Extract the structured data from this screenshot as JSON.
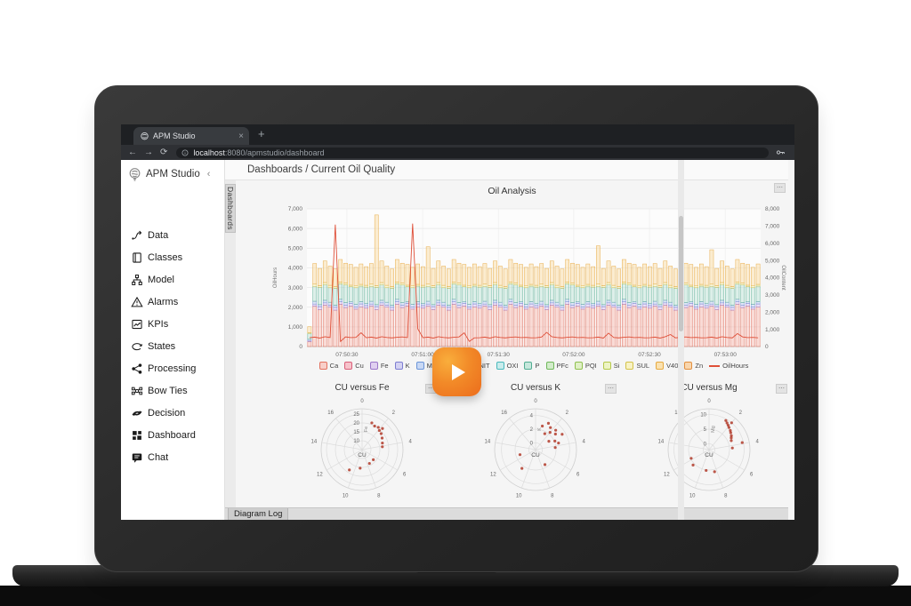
{
  "ui": {
    "menu_dots": "⋯",
    "close": "×",
    "new_tab": "+",
    "back": "←",
    "forward": "→",
    "reload": "⟳",
    "collapse": "‹"
  },
  "browser": {
    "tab": {
      "title": "APM Studio"
    },
    "address": {
      "host": "localhost",
      "rest": ":8080/apmstudio/dashboard"
    }
  },
  "sidebar": {
    "brand": "APM Studio",
    "items": [
      {
        "label": "Data"
      },
      {
        "label": "Classes"
      },
      {
        "label": "Model"
      },
      {
        "label": "Alarms"
      },
      {
        "label": "KPIs"
      },
      {
        "label": "States"
      },
      {
        "label": "Processing"
      },
      {
        "label": "Bow Ties"
      },
      {
        "label": "Decision"
      },
      {
        "label": "Dashboard"
      },
      {
        "label": "Chat"
      }
    ]
  },
  "breadcrumb": "Dashboards / Current Oil Quality",
  "panel_tab": "Dashboards",
  "bottom_tab": "Diagram Log",
  "chart_data": [
    {
      "type": "bar",
      "title": "Oil Analysis",
      "ylabel_left": "OilHours",
      "ylabel_right": "OilContent",
      "y_left": {
        "min": 0,
        "max": 7000,
        "step": 1000
      },
      "y_right": {
        "min": 0,
        "max": 8000,
        "step": 1000
      },
      "x_ticks": [
        "07:50:30",
        "07:51:00",
        "07:51:30",
        "07:52:00",
        "07:52:30",
        "07:53:00"
      ],
      "x_tick_pos": [
        0.088,
        0.255,
        0.422,
        0.588,
        0.755,
        0.922
      ],
      "grid": true,
      "legend_position": "bottom",
      "series": [
        {
          "name": "Ca",
          "fill": "#f5c0b7",
          "stroke": "#dd6a58",
          "values": [
            250,
            2050,
            1880,
            2100,
            2000,
            1850,
            2150,
            1980,
            2060,
            1900,
            2020,
            1950,
            2050,
            1880,
            2100,
            2000,
            1850,
            2150,
            1980,
            2060,
            1900,
            2020,
            1950,
            2050,
            1880,
            2100,
            2000,
            1850,
            2150,
            1980,
            2060,
            1900,
            2020,
            1950,
            2050,
            1880,
            2100,
            2000,
            1850,
            2150,
            1980,
            2060,
            1900,
            2020,
            1950,
            2050,
            1880,
            2100,
            2000,
            1850,
            2150,
            1980,
            2060,
            1900,
            2020,
            1950,
            2050,
            1880,
            2100,
            2000,
            1850,
            2150,
            1980,
            2060,
            1900,
            2020,
            1950,
            2050,
            1880,
            2100,
            2000,
            1850,
            2150,
            1980,
            2060,
            1900,
            2020,
            1950,
            2050,
            1880,
            2100,
            2000,
            1850,
            2150,
            1980,
            2060,
            1900,
            2020
          ]
        },
        {
          "name": "Fe",
          "fill": "#ddcbf0",
          "stroke": "#9a76c9",
          "values": [
            60,
            110,
            150,
            120,
            100,
            140,
            125,
            115,
            135,
            105,
            145,
            130,
            110,
            150,
            120,
            100,
            140,
            125,
            115,
            135,
            105,
            145,
            130,
            110,
            150,
            120,
            100,
            140,
            125,
            115,
            135,
            105,
            145,
            130,
            110,
            150,
            120,
            100,
            140,
            125,
            115,
            135,
            105,
            145,
            130,
            110,
            150,
            120,
            100,
            140,
            125,
            115,
            135,
            105,
            145,
            130,
            110,
            150,
            120,
            100,
            140,
            125,
            115,
            135,
            105,
            145,
            130,
            110,
            150,
            120,
            100,
            140,
            125,
            115,
            135,
            105,
            145,
            130,
            110,
            150,
            120,
            100,
            140,
            125,
            115,
            135,
            105,
            145
          ]
        },
        {
          "name": "Mg",
          "fill": "#c6d4f1",
          "stroke": "#6b8fd4",
          "values": [
            60,
            140,
            100,
            130,
            150,
            110,
            125,
            135,
            95,
            145,
            115,
            120,
            140,
            100,
            130,
            150,
            110,
            125,
            135,
            95,
            145,
            115,
            120,
            140,
            100,
            130,
            150,
            110,
            125,
            135,
            95,
            145,
            115,
            120,
            140,
            100,
            130,
            150,
            110,
            125,
            135,
            95,
            145,
            115,
            120,
            140,
            100,
            130,
            150,
            110,
            125,
            135,
            95,
            145,
            115,
            120,
            140,
            100,
            130,
            150,
            110,
            125,
            135,
            95,
            145,
            115,
            120,
            140,
            100,
            130,
            150,
            110,
            125,
            135,
            95,
            145,
            115,
            120,
            140,
            100,
            130,
            150,
            110,
            125,
            135,
            95,
            145,
            115
          ]
        },
        {
          "name": "P",
          "fill": "#c2e4d8",
          "stroke": "#55ab90",
          "values": [
            300,
            760,
            880,
            800,
            740,
            860,
            780,
            900,
            750,
            840,
            790,
            820,
            760,
            880,
            800,
            740,
            860,
            780,
            900,
            750,
            840,
            790,
            820,
            760,
            880,
            800,
            740,
            860,
            780,
            900,
            750,
            840,
            790,
            820,
            760,
            880,
            800,
            740,
            860,
            780,
            900,
            750,
            840,
            790,
            820,
            760,
            880,
            800,
            740,
            860,
            780,
            900,
            750,
            840,
            790,
            820,
            760,
            880,
            800,
            740,
            860,
            780,
            900,
            750,
            840,
            790,
            820,
            760,
            880,
            800,
            740,
            860,
            780,
            900,
            750,
            840,
            790,
            820,
            760,
            880,
            800,
            740,
            860,
            780,
            900,
            750,
            840,
            790
          ]
        },
        {
          "name": "SUL",
          "fill": "#f7f1c3",
          "stroke": "#d2c148",
          "values": [
            40,
            110,
            80,
            100,
            120,
            85,
            95,
            105,
            75,
            115,
            88,
            90,
            110,
            80,
            100,
            120,
            85,
            95,
            105,
            75,
            115,
            88,
            90,
            110,
            80,
            100,
            120,
            85,
            95,
            105,
            75,
            115,
            88,
            90,
            110,
            80,
            100,
            120,
            85,
            95,
            105,
            75,
            115,
            88,
            90,
            110,
            80,
            100,
            120,
            85,
            95,
            105,
            75,
            115,
            88,
            90,
            110,
            80,
            100,
            120,
            85,
            95,
            105,
            75,
            115,
            88,
            90,
            110,
            80,
            100,
            120,
            85,
            95,
            105,
            75,
            115,
            88,
            90,
            110,
            80,
            100,
            120,
            85,
            95,
            105,
            75,
            115,
            88
          ]
        },
        {
          "name": "V40",
          "fill": "#fadfab",
          "stroke": "#e5a63c",
          "values": [
            300,
            1050,
            880,
            1100,
            980,
            900,
            1150,
            1000,
            1060,
            920,
            1040,
            950,
            1050,
            3600,
            1100,
            980,
            900,
            1150,
            1000,
            1060,
            920,
            1040,
            950,
            1900,
            880,
            1100,
            980,
            900,
            1150,
            1000,
            1060,
            920,
            1040,
            950,
            1050,
            880,
            1100,
            980,
            900,
            1150,
            1000,
            1060,
            920,
            1040,
            950,
            1050,
            880,
            1100,
            980,
            900,
            1150,
            1000,
            1060,
            920,
            1040,
            950,
            1950,
            880,
            1100,
            980,
            900,
            1150,
            1000,
            1060,
            920,
            1040,
            950,
            1050,
            880,
            1100,
            980,
            900,
            1150,
            1000,
            1060,
            920,
            1040,
            950,
            1750,
            880,
            1100,
            980,
            900,
            1150,
            1000,
            1060,
            920,
            1040
          ]
        }
      ],
      "line_series": {
        "name": "OilHours",
        "color": "#df4f38",
        "values": [
          450,
          480,
          430,
          500,
          460,
          6200,
          260,
          490,
          455,
          465,
          700,
          450,
          480,
          430,
          500,
          460,
          440,
          470,
          490,
          455,
          6250,
          900,
          450,
          480,
          430,
          500,
          460,
          440,
          470,
          490,
          700,
          260,
          445,
          450,
          480,
          430,
          500,
          460,
          440,
          470,
          490,
          455,
          465,
          445,
          450,
          480,
          720,
          500,
          460,
          440,
          470,
          490,
          455,
          465,
          445,
          450,
          480,
          430,
          680,
          460,
          440,
          470,
          490,
          455,
          465,
          445,
          450,
          480,
          430,
          500,
          610,
          440,
          470,
          490,
          455,
          465,
          445,
          450,
          480,
          430,
          500,
          460,
          440,
          660,
          490,
          455,
          465,
          445
        ]
      },
      "legend": [
        {
          "label": "Ca",
          "fill": "#f8cfc9",
          "stroke": "#e2715f"
        },
        {
          "label": "Cu",
          "fill": "#f6c3cb",
          "stroke": "#d95f79"
        },
        {
          "label": "Fe",
          "fill": "#e0d0f0",
          "stroke": "#9a76c9"
        },
        {
          "label": "K",
          "fill": "#d4d2f2",
          "stroke": "#7d7ed1"
        },
        {
          "label": "Mg",
          "fill": "#c8d8f4",
          "stroke": "#6b95d8"
        },
        {
          "label": "Mo",
          "fill": "#d0e2f6",
          "stroke": "#5fa6d9"
        },
        {
          "label": "NIT",
          "fill": "#d6ecf8",
          "stroke": "#58b3dd"
        },
        {
          "label": "OXI",
          "fill": "#c9ecec",
          "stroke": "#49b8bc"
        },
        {
          "label": "P",
          "fill": "#c6e7dc",
          "stroke": "#52ad92"
        },
        {
          "label": "PFc",
          "fill": "#d2ecca",
          "stroke": "#6fb75a"
        },
        {
          "label": "PQI",
          "fill": "#e0f0c6",
          "stroke": "#8fc04f"
        },
        {
          "label": "Si",
          "fill": "#edf4c4",
          "stroke": "#b5c84a"
        },
        {
          "label": "SUL",
          "fill": "#f8f2c4",
          "stroke": "#d3c24a"
        },
        {
          "label": "V40",
          "fill": "#fae1b0",
          "stroke": "#e6a93f"
        },
        {
          "label": "Zn",
          "fill": "#f9d6ad",
          "stroke": "#e28f3e"
        },
        {
          "label": "OilHours",
          "type": "line",
          "color": "#df4f38"
        }
      ]
    },
    {
      "type": "scatter-polar",
      "title": "CU versus Fe",
      "center_label": "CU",
      "radial_title": "Fe",
      "angular_ticks": [
        0,
        2,
        4,
        6,
        8,
        10,
        12,
        14,
        16
      ],
      "angular_max": 18,
      "radial_ticks": [
        10,
        15,
        20,
        25
      ],
      "radial_min": 5,
      "radial_max": 28,
      "point_color": "#b23b2a",
      "points": [
        [
          1.0,
          21
        ],
        [
          1.4,
          20
        ],
        [
          1.8,
          20.5
        ],
        [
          2.1,
          19.5
        ],
        [
          2.5,
          19
        ],
        [
          3.0,
          18
        ],
        [
          3.6,
          17
        ],
        [
          4.1,
          16.5
        ],
        [
          6.6,
          13.5
        ],
        [
          7.6,
          13.8
        ],
        [
          9.3,
          15.5
        ],
        [
          10.6,
          18.5
        ],
        [
          2.2,
          21.5
        ]
      ]
    },
    {
      "type": "scatter-polar",
      "title": "CU versus K",
      "center_label": "CU",
      "radial_title": "K",
      "angular_ticks": [
        0,
        2,
        4,
        6,
        8,
        10,
        12,
        14,
        16
      ],
      "angular_max": 18,
      "radial_ticks": [
        0,
        2,
        4
      ],
      "radial_min": -1,
      "radial_max": 5,
      "point_color": "#b23b2a",
      "points": [
        [
          0.8,
          2.6
        ],
        [
          1.3,
          3.3
        ],
        [
          1.7,
          2.9
        ],
        [
          2.0,
          2.3
        ],
        [
          2.3,
          3.1
        ],
        [
          2.6,
          2.7
        ],
        [
          3.0,
          3.5
        ],
        [
          3.3,
          2.1
        ],
        [
          3.7,
          2.5
        ],
        [
          1.5,
          1.7
        ],
        [
          2.9,
          1.3
        ],
        [
          4.2,
          1.9
        ],
        [
          7.4,
          1.6
        ],
        [
          10.8,
          2.4
        ],
        [
          12.6,
          1.4
        ]
      ]
    },
    {
      "type": "scatter-polar",
      "title": "CU versus Mg",
      "center_label": "CU",
      "radial_title": "Mg",
      "angular_ticks": [
        0,
        2,
        4,
        6,
        8,
        10,
        12,
        14,
        16
      ],
      "angular_max": 18,
      "radial_ticks": [
        0,
        5,
        10
      ],
      "radial_min": -2,
      "radial_max": 12,
      "point_color": "#b23b2a",
      "points": [
        [
          1.5,
          9.5
        ],
        [
          1.7,
          9.0
        ],
        [
          1.9,
          8.6
        ],
        [
          2.1,
          8.2
        ],
        [
          2.4,
          7.8
        ],
        [
          2.6,
          7.4
        ],
        [
          2.9,
          7.0
        ],
        [
          3.1,
          6.6
        ],
        [
          3.4,
          6.2
        ],
        [
          2.0,
          10.0
        ],
        [
          3.9,
          9.6
        ],
        [
          4.3,
          6.0
        ],
        [
          8.3,
          5.8
        ],
        [
          9.4,
          5.2
        ],
        [
          11.3,
          5.6
        ],
        [
          12.2,
          4.8
        ]
      ]
    }
  ]
}
